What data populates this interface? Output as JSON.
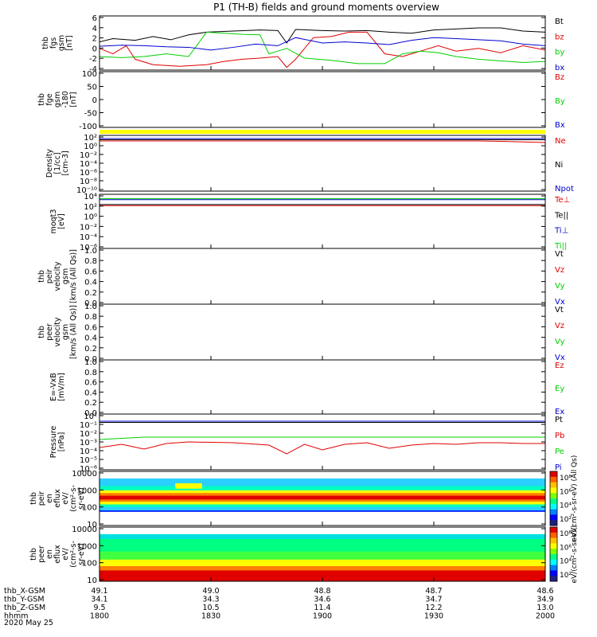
{
  "title": "P1 (TH-B) fields and ground moments overview",
  "colors": {
    "black": "#000000",
    "red": "#e00000",
    "green": "#00d000",
    "blue": "#0000d0",
    "yellow": "#ffff00"
  },
  "chart_data": [
    {
      "type": "line",
      "ylabel": [
        "thb",
        "fgs",
        "gsm",
        "[nT]"
      ],
      "ylim": [
        -4,
        6
      ],
      "yticks": [
        "6",
        "4",
        "2",
        "0",
        "-2",
        "-4"
      ],
      "legend": [
        {
          "name": "Bt",
          "color": "#000000"
        },
        {
          "name": "bz",
          "color": "#e00000"
        },
        {
          "name": "by",
          "color": "#00d000"
        },
        {
          "name": "bx",
          "color": "#0000d0"
        }
      ],
      "series": [
        {
          "name": "Bt",
          "color": "#000000",
          "points": [
            [
              0,
              1.2
            ],
            [
              0.03,
              1.8
            ],
            [
              0.08,
              1.5
            ],
            [
              0.12,
              2.2
            ],
            [
              0.16,
              1.6
            ],
            [
              0.2,
              2.5
            ],
            [
              0.24,
              3.0
            ],
            [
              0.3,
              3.2
            ],
            [
              0.36,
              3.4
            ],
            [
              0.4,
              3.3
            ],
            [
              0.42,
              1.0
            ],
            [
              0.44,
              3.5
            ],
            [
              0.5,
              3.3
            ],
            [
              0.55,
              3.2
            ],
            [
              0.6,
              3.3
            ],
            [
              0.65,
              3.0
            ],
            [
              0.7,
              2.8
            ],
            [
              0.75,
              3.4
            ],
            [
              0.8,
              3.6
            ],
            [
              0.85,
              3.8
            ],
            [
              0.9,
              3.8
            ],
            [
              0.95,
              3.2
            ],
            [
              1,
              3.0
            ]
          ]
        },
        {
          "name": "bz",
          "color": "#e00000",
          "points": [
            [
              0,
              0.0
            ],
            [
              0.03,
              -1.0
            ],
            [
              0.06,
              0.5
            ],
            [
              0.08,
              -2.0
            ],
            [
              0.12,
              -3.0
            ],
            [
              0.18,
              -3.3
            ],
            [
              0.24,
              -3.0
            ],
            [
              0.28,
              -2.4
            ],
            [
              0.32,
              -2.0
            ],
            [
              0.36,
              -1.8
            ],
            [
              0.4,
              -1.5
            ],
            [
              0.42,
              -3.5
            ],
            [
              0.44,
              -2.0
            ],
            [
              0.48,
              2.0
            ],
            [
              0.52,
              2.2
            ],
            [
              0.56,
              3.0
            ],
            [
              0.6,
              3.0
            ],
            [
              0.64,
              -1.0
            ],
            [
              0.68,
              -1.5
            ],
            [
              0.72,
              -0.5
            ],
            [
              0.76,
              0.5
            ],
            [
              0.8,
              -0.5
            ],
            [
              0.85,
              0.0
            ],
            [
              0.9,
              -0.8
            ],
            [
              0.95,
              0.5
            ],
            [
              1,
              -0.3
            ]
          ]
        },
        {
          "name": "by",
          "color": "#00d000",
          "points": [
            [
              0,
              -1.5
            ],
            [
              0.05,
              -1.7
            ],
            [
              0.1,
              -1.5
            ],
            [
              0.15,
              -1.0
            ],
            [
              0.2,
              -1.5
            ],
            [
              0.24,
              3.0
            ],
            [
              0.28,
              2.8
            ],
            [
              0.32,
              2.6
            ],
            [
              0.36,
              2.5
            ],
            [
              0.38,
              -1.0
            ],
            [
              0.4,
              -0.5
            ],
            [
              0.42,
              0.0
            ],
            [
              0.46,
              -1.8
            ],
            [
              0.52,
              -2.2
            ],
            [
              0.58,
              -2.8
            ],
            [
              0.64,
              -2.8
            ],
            [
              0.68,
              -1.0
            ],
            [
              0.72,
              -0.5
            ],
            [
              0.76,
              -0.8
            ],
            [
              0.8,
              -1.5
            ],
            [
              0.85,
              -2.0
            ],
            [
              0.9,
              -2.3
            ],
            [
              0.95,
              -2.6
            ],
            [
              1,
              -2.4
            ]
          ]
        },
        {
          "name": "bx",
          "color": "#0000d0",
          "points": [
            [
              0,
              0.4
            ],
            [
              0.05,
              0.6
            ],
            [
              0.1,
              0.5
            ],
            [
              0.15,
              0.3
            ],
            [
              0.2,
              0.2
            ],
            [
              0.25,
              -0.3
            ],
            [
              0.3,
              0.2
            ],
            [
              0.35,
              0.8
            ],
            [
              0.4,
              0.5
            ],
            [
              0.44,
              2.0
            ],
            [
              0.5,
              1.0
            ],
            [
              0.55,
              1.2
            ],
            [
              0.6,
              1.0
            ],
            [
              0.65,
              0.7
            ],
            [
              0.7,
              1.5
            ],
            [
              0.75,
              2.0
            ],
            [
              0.8,
              1.8
            ],
            [
              0.85,
              1.6
            ],
            [
              0.9,
              1.4
            ],
            [
              0.95,
              0.8
            ],
            [
              1,
              0.5
            ]
          ]
        }
      ]
    },
    {
      "type": "line",
      "ylabel": [
        "thb",
        "fge",
        "gsm",
        "-180",
        "[nT]"
      ],
      "ylim": [
        -125,
        100
      ],
      "yticks": [
        "100",
        "50",
        "0",
        "-50",
        "-100"
      ],
      "legend": [
        {
          "name": "Bz",
          "color": "#e00000"
        },
        {
          "name": "By",
          "color": "#00d000"
        },
        {
          "name": "Bx",
          "color": "#0000d0"
        }
      ],
      "series": []
    },
    {
      "type": "line",
      "ylabel": [
        "Density",
        "[1/cc]",
        "[cm-3]"
      ],
      "ylim_log": [
        -12,
        2
      ],
      "yticks": [
        "10²",
        "10⁰",
        "10⁻²",
        "10⁻⁴",
        "10⁻⁶",
        "10⁻⁸",
        "10⁻¹⁰"
      ],
      "legend": [
        {
          "name": "Ne",
          "color": "#e00000"
        },
        {
          "name": "Ni",
          "color": "#000000"
        },
        {
          "name": "Npot",
          "color": "#0000d0"
        }
      ],
      "series": [
        {
          "name": "Npot",
          "color": "#0000d0",
          "points": [
            [
              0,
              1.2
            ],
            [
              0.5,
              1.2
            ],
            [
              1,
              1.2
            ]
          ]
        },
        {
          "name": "Ni",
          "color": "#000000",
          "points": [
            [
              0,
              0.9
            ],
            [
              1,
              0.9
            ]
          ]
        },
        {
          "name": "Ne",
          "color": "#e00000",
          "points": [
            [
              0,
              0.6
            ],
            [
              0.85,
              0.6
            ],
            [
              0.9,
              0.5
            ],
            [
              1,
              0.2
            ]
          ]
        }
      ]
    },
    {
      "type": "line",
      "ylabel": [
        "moqt3",
        "[eV]"
      ],
      "ylim_log": [
        -6,
        4
      ],
      "yticks": [
        "10⁴",
        "10²",
        "10⁰",
        "10⁻²",
        "10⁻⁴",
        "10⁻⁶"
      ],
      "legend": [
        {
          "name": "Te⊥",
          "color": "#e00000"
        },
        {
          "name": "Te||",
          "color": "#000000"
        },
        {
          "name": "Ti⊥",
          "color": "#0000d0"
        },
        {
          "name": "Ti||",
          "color": "#00d000"
        }
      ],
      "series": [
        {
          "name": "Ti||",
          "color": "#00d000",
          "points": [
            [
              0,
              3.2
            ],
            [
              1,
              3.2
            ]
          ]
        },
        {
          "name": "Ti⊥",
          "color": "#0000d0",
          "points": [
            [
              0,
              3.0
            ],
            [
              1,
              3.0
            ]
          ]
        },
        {
          "name": "Te||",
          "color": "#000000",
          "points": [
            [
              0,
              2.1
            ],
            [
              1,
              2.1
            ]
          ]
        },
        {
          "name": "Te⊥",
          "color": "#e00000",
          "points": [
            [
              0,
              1.9
            ],
            [
              1,
              1.9
            ]
          ]
        }
      ]
    },
    {
      "type": "line",
      "ylabel": [
        "thb",
        "peir",
        "velocity",
        "gsm",
        "[km/s (All Qs)]"
      ],
      "ylim": [
        0,
        1
      ],
      "yticks": [
        "1.0",
        "0.8",
        "0.6",
        "0.4",
        "0.2",
        "0.0"
      ],
      "legend": [
        {
          "name": "Vt",
          "color": "#000000"
        },
        {
          "name": "Vz",
          "color": "#e00000"
        },
        {
          "name": "Vy",
          "color": "#00d000"
        },
        {
          "name": "Vx",
          "color": "#0000d0"
        }
      ],
      "series": []
    },
    {
      "type": "line",
      "ylabel": [
        "thb",
        "peer",
        "velocity",
        "gsm",
        "[km/s (All Qs)]"
      ],
      "ylim": [
        0,
        1
      ],
      "yticks": [
        "1.0",
        "0.8",
        "0.6",
        "0.4",
        "0.2",
        "0.0"
      ],
      "legend": [
        {
          "name": "Vt",
          "color": "#000000"
        },
        {
          "name": "Vz",
          "color": "#e00000"
        },
        {
          "name": "Vy",
          "color": "#00d000"
        },
        {
          "name": "Vx",
          "color": "#0000d0"
        }
      ],
      "series": []
    },
    {
      "type": "line",
      "ylabel": [
        "E=-VxB",
        "[mV/m]"
      ],
      "ylim": [
        0,
        1
      ],
      "yticks": [
        "1.0",
        "0.8",
        "0.6",
        "0.4",
        "0.2",
        "0.0"
      ],
      "legend": [
        {
          "name": "Ez",
          "color": "#e00000"
        },
        {
          "name": "Ey",
          "color": "#00d000"
        },
        {
          "name": "Ex",
          "color": "#0000d0"
        }
      ],
      "series": []
    },
    {
      "type": "line",
      "ylabel": [
        "Pressure",
        "[nPa]"
      ],
      "ylim_log": [
        -6,
        1
      ],
      "yticks": [
        "10¹",
        "10⁻¹",
        "10⁻²",
        "10⁻³",
        "10⁻⁴",
        "10⁻⁵",
        "10⁻⁶"
      ],
      "legend": [
        {
          "name": "Pt",
          "color": "#000000"
        },
        {
          "name": "Pb",
          "color": "#e00000"
        },
        {
          "name": "Pe",
          "color": "#00d000"
        },
        {
          "name": "Pi",
          "color": "#0000d0"
        }
      ],
      "series": [
        {
          "name": "Pi",
          "color": "#0000d0",
          "points": [
            [
              0,
              0.1
            ],
            [
              1,
              0.1
            ]
          ]
        },
        {
          "name": "Pt",
          "color": "#000000",
          "points": [
            [
              0,
              -0.05
            ],
            [
              1,
              -0.05
            ]
          ]
        },
        {
          "name": "Pe",
          "color": "#00d000",
          "points": [
            [
              0,
              -2.2
            ],
            [
              0.1,
              -1.9
            ],
            [
              1,
              -1.9
            ]
          ]
        },
        {
          "name": "Pb",
          "color": "#e00000",
          "points": [
            [
              0,
              -3.2
            ],
            [
              0.05,
              -2.8
            ],
            [
              0.1,
              -3.4
            ],
            [
              0.15,
              -2.7
            ],
            [
              0.2,
              -2.5
            ],
            [
              0.3,
              -2.6
            ],
            [
              0.38,
              -2.9
            ],
            [
              0.42,
              -4.0
            ],
            [
              0.46,
              -2.8
            ],
            [
              0.5,
              -3.5
            ],
            [
              0.55,
              -2.8
            ],
            [
              0.6,
              -2.6
            ],
            [
              0.65,
              -3.3
            ],
            [
              0.7,
              -2.9
            ],
            [
              0.75,
              -2.7
            ],
            [
              0.8,
              -2.8
            ],
            [
              0.85,
              -2.6
            ],
            [
              0.9,
              -2.6
            ],
            [
              0.95,
              -2.7
            ],
            [
              1,
              -2.7
            ]
          ]
        }
      ]
    },
    {
      "type": "heatmap",
      "ylabel": [
        "thb",
        "peir",
        "en",
        "eflux",
        "eV/",
        "(cm²-s-",
        "sr-eV)"
      ],
      "yticks": [
        "10000",
        "1000",
        "100",
        "10"
      ],
      "colorbar_label": "eV/(cm²-s-sr-eV) (All Qs)",
      "colorbar_ticks": [
        "10⁸",
        "10⁶",
        "10⁴",
        "10²"
      ]
    },
    {
      "type": "heatmap",
      "ylabel": [
        "thb",
        "peer",
        "en",
        "eflux",
        "eV/",
        "(cm²-s-",
        "sr-eV)"
      ],
      "yticks": [
        "10000",
        "1000",
        "100",
        "10"
      ],
      "colorbar_label": "eV/(cm²-s-sr-eV)",
      "colorbar_ticks": [
        "10⁸",
        "10⁶",
        "10⁴",
        "10²"
      ]
    }
  ],
  "xaxis": {
    "rows": [
      {
        "label": "thb_X-GSM",
        "values": [
          "49.1",
          "49.0",
          "48.8",
          "48.7",
          "48.6"
        ]
      },
      {
        "label": "thb_Y-GSM",
        "values": [
          "34.1",
          "34.3",
          "34.6",
          "34.7",
          "34.9"
        ]
      },
      {
        "label": "thb_Z-GSM",
        "values": [
          "9.5",
          "10.5",
          "11.4",
          "12.2",
          "13.0"
        ]
      },
      {
        "label": "hhmm",
        "values": [
          "1800",
          "1830",
          "1900",
          "1930",
          "2000"
        ]
      }
    ],
    "date": "2020 May 25"
  }
}
